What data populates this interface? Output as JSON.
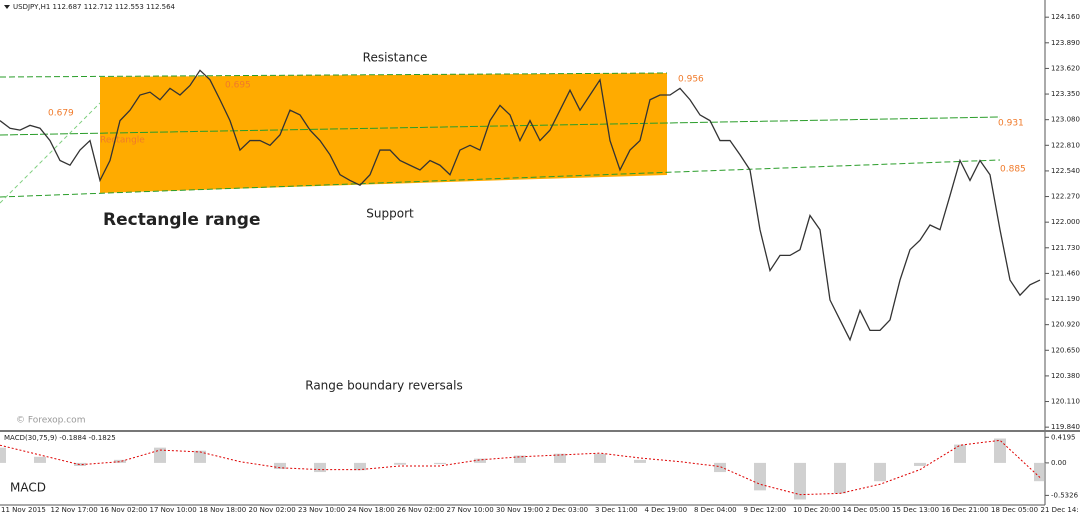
{
  "header": "USDJPY,H1  112.687 112.712 112.553 112.564",
  "chart_data": [
    {
      "type": "line",
      "annotations": {
        "resistance": "Resistance",
        "support": "Support",
        "rectangle_range": "Rectangle range",
        "reversals": "Range boundary reversals",
        "copyright": "© Forexop.com",
        "level_1": "0.679",
        "level_2": "0.695",
        "level_3": "0.956",
        "level_4": "0.931",
        "level_5": "0.885",
        "rectangle": "Rectangle"
      },
      "x_tick_labels": [
        "11 Nov 2015",
        "12 Nov 17:00",
        "16 Nov 02:00",
        "17 Nov 10:00",
        "18 Nov 18:00",
        "20 Nov 02:00",
        "23 Nov 10:00",
        "24 Nov 18:00",
        "26 Nov 02:00",
        "27 Nov 10:00",
        "30 Nov 19:00",
        "2 Dec 03:00",
        "3 Dec 11:00",
        "4 Dec 19:00",
        "8 Dec 04:00",
        "9 Dec 12:00",
        "10 Dec 20:00",
        "14 Dec 05:00",
        "15 Dec 13:00",
        "16 Dec 21:00",
        "18 Dec 05:00",
        "21 Dec 14:"
      ],
      "series": [
        {
          "color": "#333333",
          "values": [
            123.07,
            122.99,
            122.97,
            123.02,
            122.99,
            122.86,
            122.65,
            122.6,
            122.76,
            122.86,
            122.44,
            122.65,
            123.07,
            123.18,
            123.34,
            123.37,
            123.29,
            123.41,
            123.34,
            123.44,
            123.6,
            123.5,
            123.29,
            123.07,
            122.76,
            122.86,
            122.86,
            122.81,
            122.92,
            123.18,
            123.13,
            122.97,
            122.86,
            122.71,
            122.5,
            122.44,
            122.39,
            122.5,
            122.76,
            122.76,
            122.65,
            122.6,
            122.55,
            122.65,
            122.6,
            122.5,
            122.76,
            122.81,
            122.76,
            123.07,
            123.23,
            123.13,
            122.86,
            123.07,
            122.86,
            122.97,
            123.18,
            123.39,
            123.18,
            123.34,
            123.5,
            122.86,
            122.55,
            122.76,
            122.86,
            123.29,
            123.34,
            123.34,
            123.41,
            123.29,
            123.13,
            123.07,
            122.86,
            122.86,
            122.71,
            122.55,
            121.92,
            121.49,
            121.65,
            121.65,
            121.71,
            122.07,
            121.92,
            121.18,
            120.97,
            120.76,
            121.07,
            120.86,
            120.86,
            120.97,
            121.39,
            121.71,
            121.81,
            121.97,
            121.92,
            122.28,
            122.65,
            122.44,
            122.65,
            122.5,
            121.92,
            121.39,
            121.23,
            121.34,
            121.39
          ]
        }
      ],
      "ylim": [
        119.81,
        124.32
      ],
      "yticks": [
        {
          "value": 124.16,
          "label": "124.160"
        },
        {
          "value": 123.89,
          "label": "123.890"
        },
        {
          "value": 123.62,
          "label": "123.620"
        },
        {
          "value": 123.35,
          "label": "123.350"
        },
        {
          "value": 123.08,
          "label": "123.080"
        },
        {
          "value": 122.81,
          "label": "122.810"
        },
        {
          "value": 122.54,
          "label": "122.540"
        },
        {
          "value": 122.27,
          "label": "122.270"
        },
        {
          "value": 122,
          "label": "122.000"
        },
        {
          "value": 121.73,
          "label": "121.730"
        },
        {
          "value": 121.46,
          "label": "121.460"
        },
        {
          "value": 121.19,
          "label": "121.190"
        },
        {
          "value": 120.92,
          "label": "120.920"
        },
        {
          "value": 120.65,
          "label": "120.650"
        },
        {
          "value": 120.38,
          "label": "120.380"
        },
        {
          "value": 120.11,
          "label": "120.110"
        },
        {
          "value": 119.84,
          "label": "119.840"
        }
      ]
    },
    {
      "type": "macd",
      "title": "MACD(30,75,9) -0.1884 -0.1825",
      "label": "MACD",
      "histogram": {
        "color": "#b0b0b0",
        "values": [
          0.25,
          0.1,
          -0.05,
          0.05,
          0.25,
          0.2,
          0.0,
          -0.1,
          -0.15,
          -0.12,
          -0.03,
          -0.02,
          0.07,
          0.12,
          0.15,
          0.15,
          0.05,
          0.0,
          -0.15,
          -0.45,
          -0.6,
          -0.5,
          -0.3,
          -0.05,
          0.3,
          0.4,
          -0.3
        ]
      },
      "series": [
        {
          "color": "#dd0000",
          "values": [
            0.29,
            0.13,
            -0.03,
            0.02,
            0.21,
            0.18,
            0.02,
            -0.08,
            -0.11,
            -0.11,
            -0.05,
            -0.05,
            0.05,
            0.1,
            0.13,
            0.16,
            0.08,
            0.02,
            -0.06,
            -0.35,
            -0.52,
            -0.5,
            -0.35,
            -0.11,
            0.29,
            0.37,
            -0.24
          ]
        }
      ],
      "ylim": [
        -0.69,
        0.49
      ],
      "yticks": [
        0.4195,
        {
          "value": 0,
          "label": "0.00"
        },
        -0.5326
      ]
    }
  ]
}
